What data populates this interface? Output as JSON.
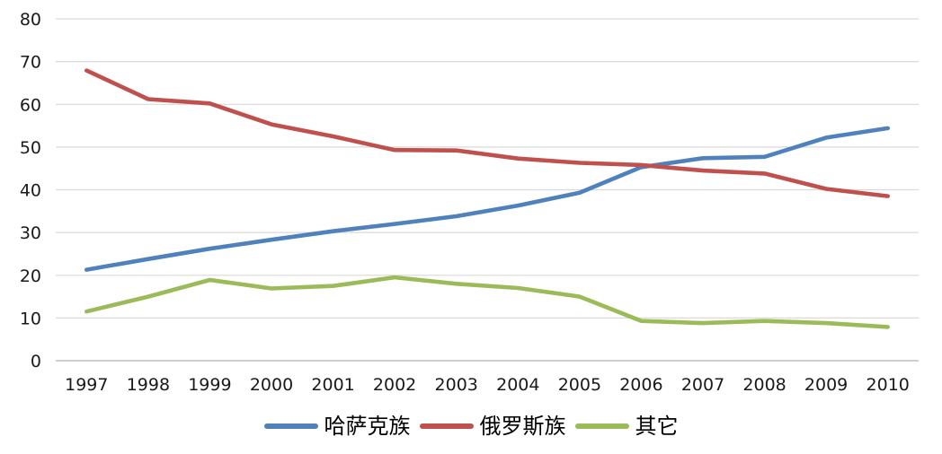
{
  "chart_data": {
    "type": "line",
    "title": "",
    "xlabel": "",
    "ylabel": "",
    "categories": [
      "1997",
      "1998",
      "1999",
      "2000",
      "2001",
      "2002",
      "2003",
      "2004",
      "2005",
      "2006",
      "2007",
      "2008",
      "2009",
      "2010"
    ],
    "series": [
      {
        "name": "哈萨克族",
        "color": "#4F81BD",
        "values": [
          21.3,
          23.8,
          26.2,
          28.3,
          30.3,
          32.0,
          33.8,
          36.3,
          39.3,
          45.3,
          47.4,
          47.7,
          52.2,
          54.4
        ]
      },
      {
        "name": "俄罗斯族",
        "color": "#C0504D",
        "values": [
          67.9,
          61.2,
          60.2,
          55.3,
          52.5,
          49.3,
          49.2,
          47.3,
          46.3,
          45.8,
          44.5,
          43.8,
          40.2,
          38.5
        ]
      },
      {
        "name": "其它",
        "color": "#9BBB59",
        "values": [
          11.5,
          15.0,
          18.9,
          16.9,
          17.5,
          19.5,
          18.0,
          17.0,
          15.0,
          9.3,
          8.8,
          9.3,
          8.8,
          7.9
        ]
      }
    ],
    "ylim": [
      0,
      80
    ],
    "yticks": [
      0,
      10,
      20,
      30,
      40,
      50,
      60,
      70,
      80
    ],
    "grid": true,
    "legend_position": "bottom",
    "background_color": "#ffffff",
    "gridline_color": "#d9d9d9",
    "axis_line_color": "#c6c6c6",
    "tick_label_color": "#1a1a1a"
  }
}
